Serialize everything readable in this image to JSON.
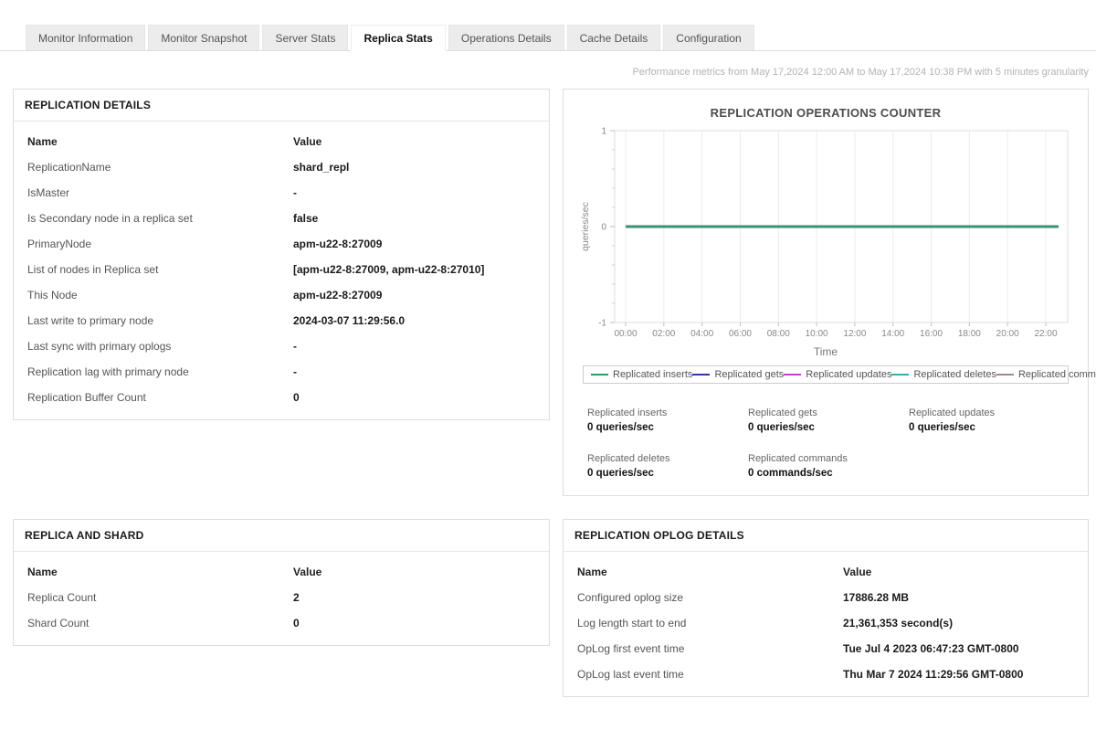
{
  "tabs": [
    {
      "label": "Monitor Information",
      "active": false
    },
    {
      "label": "Monitor Snapshot",
      "active": false
    },
    {
      "label": "Server Stats",
      "active": false
    },
    {
      "label": "Replica Stats",
      "active": true
    },
    {
      "label": "Operations Details",
      "active": false
    },
    {
      "label": "Cache Details",
      "active": false
    },
    {
      "label": "Configuration",
      "active": false
    }
  ],
  "metrics_note": "Performance metrics from May 17,2024 12:00 AM to May 17,2024 10:38 PM with 5 minutes granularity",
  "panels": {
    "replication_details": {
      "title": "REPLICATION DETAILS",
      "columns": [
        "Name",
        "Value"
      ],
      "rows": [
        [
          "ReplicationName",
          "shard_repl"
        ],
        [
          "IsMaster",
          "-"
        ],
        [
          "Is Secondary node in a replica set",
          "false"
        ],
        [
          "PrimaryNode",
          "apm-u22-8:27009"
        ],
        [
          "List of nodes in Replica set",
          "[apm-u22-8:27009, apm-u22-8:27010]"
        ],
        [
          "This Node",
          "apm-u22-8:27009"
        ],
        [
          "Last write to primary node",
          "2024-03-07 11:29:56.0"
        ],
        [
          "Last sync with primary oplogs",
          "-"
        ],
        [
          "Replication lag with primary node",
          "-"
        ],
        [
          "Replication Buffer Count",
          "0"
        ]
      ]
    },
    "replica_and_shard": {
      "title": "REPLICA AND SHARD",
      "columns": [
        "Name",
        "Value"
      ],
      "rows": [
        [
          "Replica Count",
          "2"
        ],
        [
          "Shard Count",
          "0"
        ]
      ]
    },
    "replication_oplog_details": {
      "title": "REPLICATION OPLOG DETAILS",
      "columns": [
        "Name",
        "Value"
      ],
      "rows": [
        [
          "Configured oplog size",
          "17886.28 MB"
        ],
        [
          "Log length start to end",
          "21,361,353 second(s)"
        ],
        [
          "OpLog first event time",
          "Tue Jul 4 2023 06:47:23 GMT-0800"
        ],
        [
          "OpLog last event time",
          "Thu Mar 7 2024 11:29:56 GMT-0800"
        ]
      ]
    }
  },
  "chart_data": {
    "type": "line",
    "title": "REPLICATION OPERATIONS COUNTER",
    "xlabel": "Time",
    "ylabel": "queries/sec",
    "ylim": [
      -1,
      1
    ],
    "y_ticks": [
      1,
      0,
      -1
    ],
    "y_minor_ticks_per_interval": 4,
    "x_ticks": [
      "00:00",
      "02:00",
      "04:00",
      "06:00",
      "08:00",
      "10:00",
      "12:00",
      "14:00",
      "16:00",
      "18:00",
      "20:00",
      "22:00"
    ],
    "grid": "vertical",
    "legend_position": "bottom",
    "series": [
      {
        "name": "Replicated inserts",
        "color": "#2f9e5b",
        "constant_value": 0
      },
      {
        "name": "Replicated gets",
        "color": "#3333b3",
        "constant_value": 0
      },
      {
        "name": "Replicated updates",
        "color": "#c340c3",
        "constant_value": 0
      },
      {
        "name": "Replicated deletes",
        "color": "#2cb3ab",
        "constant_value": 0
      },
      {
        "name": "Replicated commands",
        "color": "#a38787",
        "constant_value": 0
      }
    ]
  },
  "chart_stats": [
    {
      "label": "Replicated inserts",
      "value": "0 queries/sec"
    },
    {
      "label": "Replicated gets",
      "value": "0 queries/sec"
    },
    {
      "label": "Replicated updates",
      "value": "0 queries/sec"
    },
    {
      "label": "Replicated deletes",
      "value": "0 queries/sec"
    },
    {
      "label": "Replicated commands",
      "value": "0 commands/sec"
    }
  ]
}
